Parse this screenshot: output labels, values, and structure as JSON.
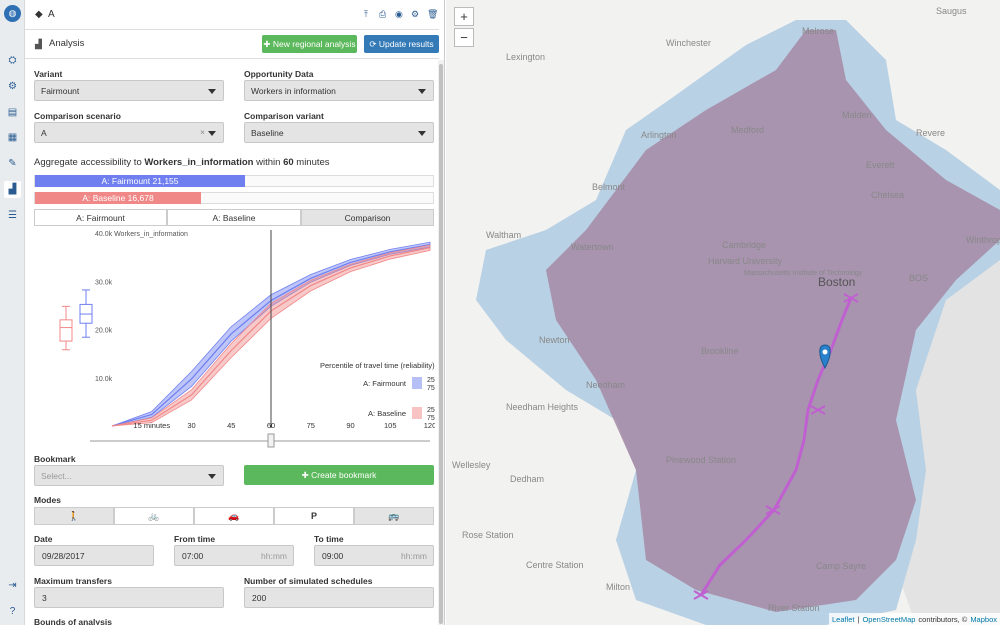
{
  "project": {
    "title": "A"
  },
  "analysis": {
    "title": "Analysis",
    "new_btn": "New regional analysis",
    "update_btn": "Update results"
  },
  "form": {
    "variant_label": "Variant",
    "variant_value": "Fairmount",
    "opportunity_label": "Opportunity Data",
    "opportunity_value": "Workers in information",
    "comparison_scenario_label": "Comparison scenario",
    "comparison_scenario_value": "A",
    "comparison_variant_label": "Comparison variant",
    "comparison_variant_value": "Baseline"
  },
  "access": {
    "prefix": "Aggregate accessibility to ",
    "target": "Workers_in_information",
    "mid": " within ",
    "minutes": "60",
    "suffix": " minutes",
    "fairmount_label": "A: Fairmount 21,155",
    "baseline_label": "A: Baseline 16,678",
    "fairmount_value": 21155,
    "baseline_value": 16678,
    "bar_max": 40000
  },
  "tabs": [
    "A: Fairmount",
    "A: Baseline",
    "Comparison"
  ],
  "colors": {
    "fairmount": "#6f7ff0",
    "baseline": "#f08888",
    "green": "#5cb85c",
    "blue": "#337ab7",
    "region": "#a58aa6",
    "transit": "#c060d0"
  },
  "chart_data": {
    "type": "area",
    "title": "40.0k Workers_in_information",
    "xlabel": "minutes",
    "ylabel": "Workers_in_information",
    "xlim": [
      0,
      120
    ],
    "ylim": [
      0,
      40000
    ],
    "x_ticks": [
      "15 minutes",
      "30",
      "45",
      "60",
      "75",
      "90",
      "105",
      "120"
    ],
    "y_ticks": [
      "40.0k Workers_in_information",
      "30.0k",
      "20.0k",
      "10.0k"
    ],
    "x": [
      0,
      15,
      30,
      45,
      60,
      75,
      90,
      105,
      120
    ],
    "series": [
      {
        "name": "A: Fairmount",
        "p25": [
          0,
          1800,
          8200,
          17600,
          24800,
          29800,
          33300,
          35600,
          37100
        ],
        "p75": [
          0,
          3000,
          11300,
          20600,
          27200,
          31400,
          34500,
          36600,
          38100
        ]
      },
      {
        "name": "A: Baseline",
        "p25": [
          0,
          700,
          5400,
          14200,
          22300,
          28000,
          32000,
          34600,
          36400
        ],
        "p75": [
          0,
          1700,
          7500,
          17100,
          25400,
          30200,
          33500,
          35900,
          37500
        ]
      }
    ],
    "boxplots": [
      {
        "name": "A: Baseline",
        "min": 15800,
        "q1": 17600,
        "median": 20400,
        "q3": 22000,
        "max": 24800
      },
      {
        "name": "A: Fairmount",
        "min": 18400,
        "q1": 21300,
        "median": 23200,
        "q3": 25200,
        "max": 28200
      }
    ],
    "cutoff_minutes": 60,
    "legend": {
      "title": "Percentile of travel time (reliability)",
      "entries": [
        {
          "name": "A: Fairmount",
          "lo": "25",
          "hi": "75"
        },
        {
          "name": "A: Baseline",
          "lo": "25",
          "hi": "75"
        }
      ]
    }
  },
  "bookmark": {
    "label": "Bookmark",
    "placeholder": "Select...",
    "create_btn": "Create bookmark"
  },
  "modes": {
    "label": "Modes",
    "items": [
      "walk",
      "bike",
      "car",
      "P",
      "bus"
    ],
    "p_label": "P"
  },
  "date": {
    "label": "Date",
    "value": "09/28/2017"
  },
  "from_time": {
    "label": "From time",
    "value": "07:00",
    "placeholder": "hh:mm"
  },
  "to_time": {
    "label": "To time",
    "value": "09:00",
    "placeholder": "hh:mm"
  },
  "transfers": {
    "label": "Maximum transfers",
    "value": "3"
  },
  "schedules": {
    "label": "Number of simulated schedules",
    "value": "200"
  },
  "bounds": {
    "label": "Bounds of analysis"
  },
  "map": {
    "labels": [
      "Saugus",
      "Winchester",
      "Melrose",
      "Lexington",
      "Arlington",
      "Medford",
      "Malden",
      "Everett",
      "Revere",
      "Belmont",
      "Chelsea",
      "Waltham",
      "Watertown",
      "Cambridge",
      "Harvard University",
      "Massachusetts Institute of Technology",
      "Boston",
      "BOS",
      "Winthrop",
      "Newton",
      "Brookline",
      "Needham",
      "Dedham",
      "Milton",
      "Camp Sayre",
      "River Station",
      "Rose Station",
      "Needham Heights",
      "Wellesley",
      "Centre Station",
      "Pinewood Station"
    ],
    "attribution": {
      "leaflet": "Leaflet",
      "osm": "OpenStreetMap",
      "contrib": "contributors, ©",
      "mapbox": "Mapbox"
    }
  }
}
